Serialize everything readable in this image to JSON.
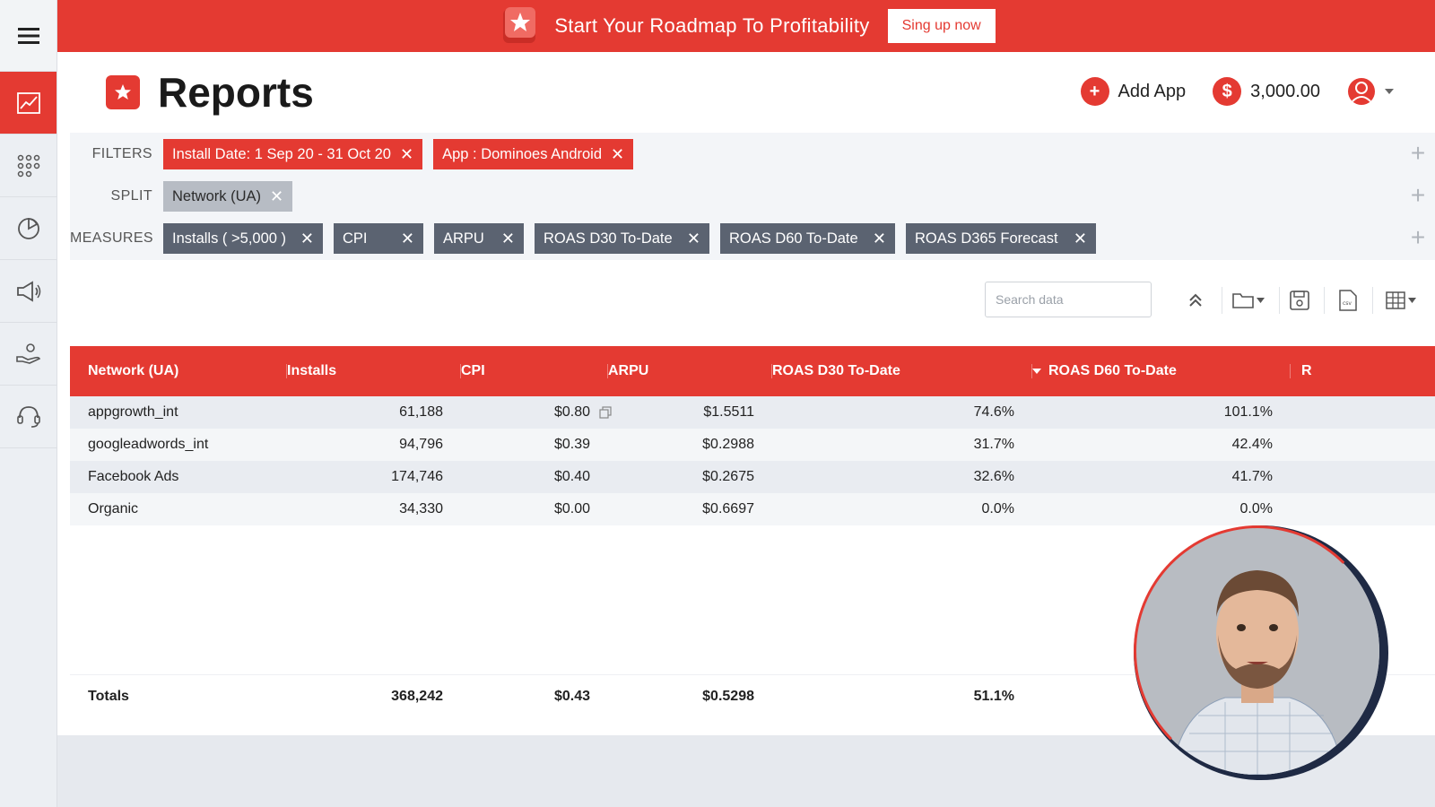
{
  "banner": {
    "text": "Start Your Roadmap To Profitability",
    "button": "Sing up now"
  },
  "header": {
    "title": "Reports",
    "add_app": "Add App",
    "balance": "3,000.00"
  },
  "filters": {
    "label": "FILTERS",
    "chips": [
      "Install Date: 1 Sep 20 - 31 Oct 20",
      "App : Dominoes Android"
    ]
  },
  "split": {
    "label": "SPLIT",
    "chips": [
      "Network (UA)"
    ]
  },
  "measures": {
    "label": "MEASURES",
    "chips": [
      "Installs ( >5,000 )",
      "CPI",
      "ARPU",
      "ROAS D30 To-Date",
      "ROAS D60 To-Date",
      "ROAS D365 Forecast"
    ]
  },
  "search": {
    "placeholder": "Search data"
  },
  "table": {
    "headers": [
      "Network (UA)",
      "Installs",
      "CPI",
      "ARPU",
      "ROAS D30 To-Date",
      "ROAS D60 To-Date",
      "R"
    ],
    "rows": [
      [
        "appgrowth_int",
        "61,188",
        "$0.80",
        "$1.5511",
        "74.6%",
        "101.1%"
      ],
      [
        "googleadwords_int",
        "94,796",
        "$0.39",
        "$0.2988",
        "31.7%",
        "42.4%"
      ],
      [
        "Facebook Ads",
        "174,746",
        "$0.40",
        "$0.2675",
        "32.6%",
        "41.7%"
      ],
      [
        "Organic",
        "34,330",
        "$0.00",
        "$0.6697",
        "0.0%",
        "0.0%"
      ]
    ],
    "totals": [
      "Totals",
      "368,242",
      "$0.43",
      "$0.5298",
      "51.1%"
    ]
  },
  "colors": {
    "accent": "#e43a32",
    "chip_dark": "#5b6371",
    "chip_grey": "#b7bcc4"
  }
}
